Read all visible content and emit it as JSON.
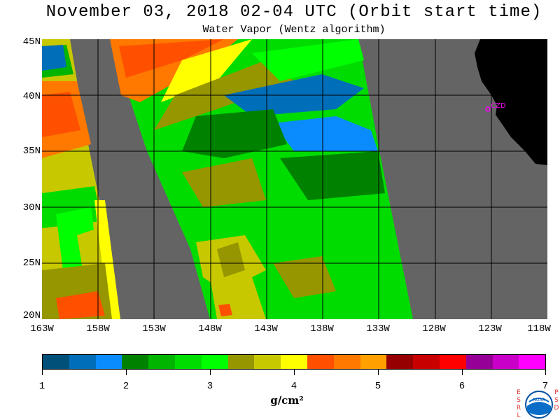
{
  "title": "November 03, 2018  02-04 UTC  (Orbit start time)",
  "subtitle": "Water Vapor (Wentz algorithm)",
  "map": {
    "lat_labels": [
      "45N",
      "40N",
      "35N",
      "30N",
      "25N",
      "20N"
    ],
    "lon_labels": [
      "163W",
      "158W",
      "153W",
      "148W",
      "143W",
      "138W",
      "133W",
      "128W",
      "123W",
      "118W"
    ],
    "marker_label": "CZD",
    "marker_color": "#ff00ff",
    "no_data_color": "#646464",
    "land_color": "#000000"
  },
  "colorbar": {
    "labels": [
      "1",
      "2",
      "3",
      "4",
      "5",
      "6",
      "7"
    ],
    "units": "g/cm²",
    "colors": [
      "#00507a",
      "#006eb9",
      "#0a8cff",
      "#008200",
      "#00b400",
      "#00dc00",
      "#00ff00",
      "#969600",
      "#c8c800",
      "#ffff00",
      "#ff5000",
      "#ff7800",
      "#ffa000",
      "#960000",
      "#c80000",
      "#ff0000",
      "#960096",
      "#c800c8",
      "#ff00ff"
    ]
  },
  "logo": {
    "left_letters": [
      "E",
      "S",
      "R",
      "L"
    ],
    "right_letters": [
      "P",
      "S",
      "D"
    ],
    "center_text": "NOAA"
  }
}
